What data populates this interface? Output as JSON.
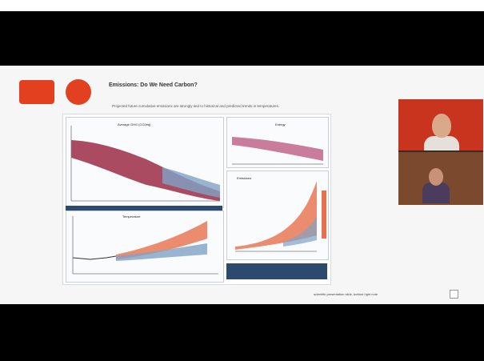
{
  "slide": {
    "title": "Emissions: Do We Need Carbon?",
    "subtitle": "Projected future cumulative emissions are strongly tied to historical and predicted trends in temperatures.",
    "panel_a_label": "Average GHG (CO2eq)",
    "panel_b_label": "Energy",
    "panel_c_label": "Temperature",
    "panel_d_label": "Emissions",
    "caption": "scientific presentation slide, bottom right note"
  },
  "colors": {
    "accent": "#e2401e",
    "band_red": "#9b2c46",
    "band_blue": "#7fa3c6",
    "band_orange": "#e8704a"
  }
}
